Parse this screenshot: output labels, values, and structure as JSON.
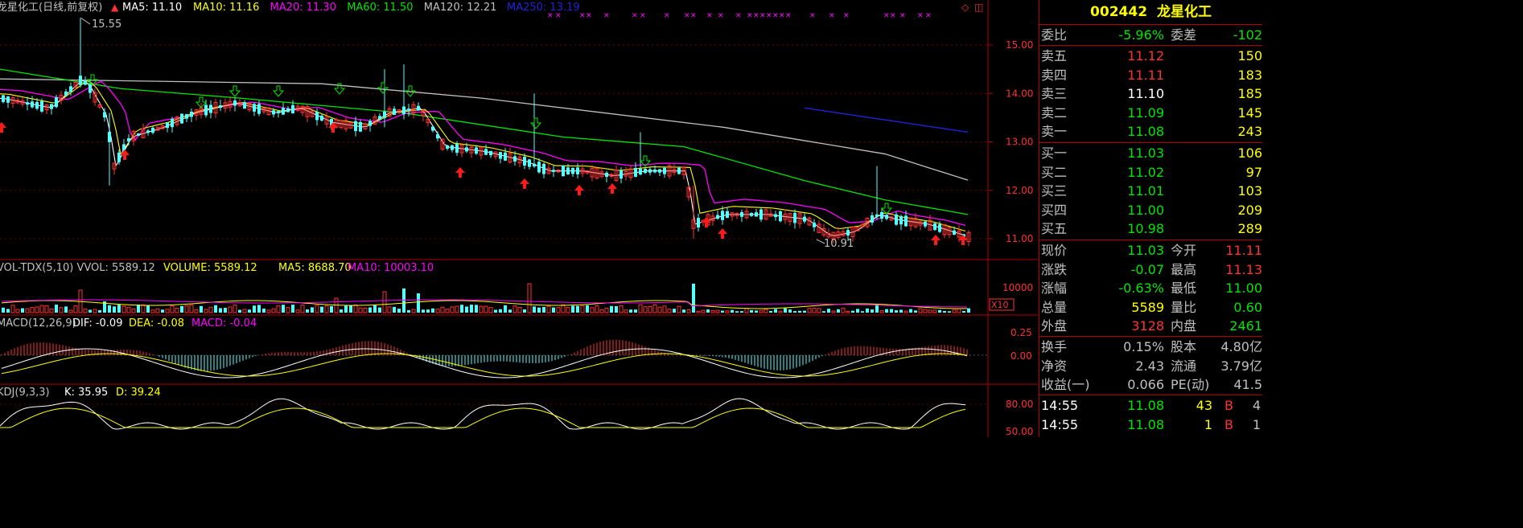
{
  "header": {
    "title": "龙星化工(日线,前复权)",
    "indicators": [
      {
        "label": "MA5: 11.10",
        "color": "#ffffff"
      },
      {
        "label": "MA10: 11.16",
        "color": "#ffff00"
      },
      {
        "label": "MA20: 11.30",
        "color": "#ff00ff"
      },
      {
        "label": "MA60: 11.50",
        "color": "#00e600"
      },
      {
        "label": "MA120: 12.21",
        "color": "#c0c0c0"
      },
      {
        "label": "MA250: 13.19",
        "color": "#2222dd"
      }
    ]
  },
  "main_chart": {
    "high_marker": "15.55",
    "low_marker": "10.91",
    "price_axis": [
      "15.00",
      "14.00",
      "13.00",
      "12.00",
      "11.00"
    ]
  },
  "volume_panel": {
    "title": "VOL-TDX(5,10) VVOL: 5589.12",
    "volume_label": "VOLUME: 5589.12",
    "ma5_label": "MA5: 8688.70",
    "ma10_label": "MA10: 10003.10",
    "axis_label": "10000",
    "unit_label": "X10"
  },
  "macd_panel": {
    "title": "MACD(12,26,9)",
    "dif_label": "DIF: -0.09",
    "dea_label": "DEA: -0.08",
    "macd_label": "MACD: -0.04",
    "axis": [
      "0.25",
      "0.00"
    ]
  },
  "kdj_panel": {
    "title": "KDJ(9,3,3)",
    "k_label": "K: 35.95",
    "d_label": "D: 39.24",
    "axis": [
      "80.00",
      "50.00"
    ]
  },
  "quote": {
    "code": "002442",
    "name": "龙星化工",
    "weibi": {
      "label": "委比",
      "value": "-5.96%",
      "label2": "委差",
      "value2": "-102"
    },
    "asks": [
      {
        "label": "卖五",
        "price": "11.12",
        "volume": "150",
        "color": "#ff3232"
      },
      {
        "label": "卖四",
        "price": "11.11",
        "volume": "183",
        "color": "#ff3232"
      },
      {
        "label": "卖三",
        "price": "11.10",
        "volume": "185",
        "color": "#ffffff"
      },
      {
        "label": "卖二",
        "price": "11.09",
        "volume": "145",
        "color": "#00e600"
      },
      {
        "label": "卖一",
        "price": "11.08",
        "volume": "243",
        "color": "#00e600"
      }
    ],
    "bids": [
      {
        "label": "买一",
        "price": "11.03",
        "volume": "106",
        "color": "#00e600"
      },
      {
        "label": "买二",
        "price": "11.02",
        "volume": "97",
        "color": "#00e600"
      },
      {
        "label": "买三",
        "price": "11.01",
        "volume": "103",
        "color": "#00e600"
      },
      {
        "label": "买四",
        "price": "11.00",
        "volume": "209",
        "color": "#00e600"
      },
      {
        "label": "买五",
        "price": "10.98",
        "volume": "289",
        "color": "#00e600"
      }
    ],
    "stats1": [
      {
        "l1": "现价",
        "v1": "11.03",
        "c1": "#00e600",
        "l2": "今开",
        "v2": "11.11",
        "c2": "#ff3232"
      },
      {
        "l1": "涨跌",
        "v1": "-0.07",
        "c1": "#00e600",
        "l2": "最高",
        "v2": "11.13",
        "c2": "#ff3232"
      },
      {
        "l1": "涨幅",
        "v1": "-0.63%",
        "c1": "#00e600",
        "l2": "最低",
        "v2": "11.00",
        "c2": "#00e600"
      },
      {
        "l1": "总量",
        "v1": "5589",
        "c1": "#ffff00",
        "l2": "量比",
        "v2": "0.60",
        "c2": "#00e600"
      },
      {
        "l1": "外盘",
        "v1": "3128",
        "c1": "#ff3232",
        "l2": "内盘",
        "v2": "2461",
        "c2": "#00e600"
      }
    ],
    "stats2": [
      {
        "l1": "换手",
        "v1": "0.15%",
        "c1": "#c0c0c0",
        "l2": "股本",
        "v2": "4.80亿",
        "c2": "#c0c0c0"
      },
      {
        "l1": "净资",
        "v1": "2.43",
        "c1": "#c0c0c0",
        "l2": "流通",
        "v2": "3.79亿",
        "c2": "#c0c0c0"
      },
      {
        "l1": "收益(一)",
        "v1": "0.066",
        "c1": "#c0c0c0",
        "l2": "PE(动)",
        "v2": "41.5",
        "c2": "#c0c0c0"
      }
    ],
    "ticks": [
      {
        "time": "14:55",
        "price": "11.08",
        "vol": "43",
        "side": "B",
        "num": "4"
      },
      {
        "time": "14:55",
        "price": "11.08",
        "vol": "1",
        "side": "B",
        "num": "1"
      }
    ]
  },
  "chart_data": {
    "type": "candlestick",
    "title": "龙星化工(日线,前复权)",
    "ylim": [
      10.8,
      15.6
    ],
    "annotations": [
      "15.55",
      "10.91"
    ],
    "series": [
      {
        "name": "MA5",
        "color": "#ffffff",
        "last": 11.1
      },
      {
        "name": "MA10",
        "color": "#ffff00",
        "last": 11.16
      },
      {
        "name": "MA20",
        "color": "#ff00ff",
        "last": 11.3
      },
      {
        "name": "MA60",
        "color": "#00e600",
        "last": 11.5
      },
      {
        "name": "MA120",
        "color": "#c0c0c0",
        "last": 12.21
      },
      {
        "name": "MA250",
        "color": "#2222dd",
        "last": 13.19
      }
    ],
    "ma250_points": [
      [
        1000,
        13.7
      ],
      [
        1203,
        13.2
      ]
    ],
    "ma120_points": [
      [
        0,
        14.3
      ],
      [
        400,
        14.2
      ],
      [
        600,
        13.9
      ],
      [
        900,
        13.3
      ],
      [
        1100,
        12.75
      ],
      [
        1203,
        12.21
      ]
    ],
    "ma60_points": [
      [
        0,
        14.5
      ],
      [
        150,
        14.1
      ],
      [
        300,
        13.9
      ],
      [
        500,
        13.6
      ],
      [
        700,
        13.1
      ],
      [
        850,
        12.9
      ],
      [
        1000,
        12.2
      ],
      [
        1100,
        11.8
      ],
      [
        1203,
        11.5
      ]
    ],
    "price_path": [
      [
        0,
        13.9
      ],
      [
        60,
        13.7
      ],
      [
        100,
        14.3
      ],
      [
        110,
        14.1
      ],
      [
        130,
        13.5
      ],
      [
        140,
        12.5
      ],
      [
        160,
        13.1
      ],
      [
        200,
        13.3
      ],
      [
        240,
        13.6
      ],
      [
        290,
        13.8
      ],
      [
        340,
        13.6
      ],
      [
        370,
        13.7
      ],
      [
        410,
        13.4
      ],
      [
        450,
        13.3
      ],
      [
        480,
        13.6
      ],
      [
        520,
        13.7
      ],
      [
        550,
        12.9
      ],
      [
        600,
        12.8
      ],
      [
        650,
        12.6
      ],
      [
        680,
        12.4
      ],
      [
        720,
        12.4
      ],
      [
        760,
        12.3
      ],
      [
        800,
        12.4
      ],
      [
        850,
        12.4
      ],
      [
        860,
        11.3
      ],
      [
        900,
        11.5
      ],
      [
        950,
        11.5
      ],
      [
        1000,
        11.4
      ],
      [
        1030,
        11.05
      ],
      [
        1060,
        11.15
      ],
      [
        1090,
        11.5
      ],
      [
        1110,
        11.4
      ],
      [
        1150,
        11.3
      ],
      [
        1203,
        11.03
      ]
    ],
    "kdj": {
      "K": 35.95,
      "D": 39.24
    },
    "macd": {
      "DIF": -0.09,
      "DEA": -0.08,
      "MACD": -0.04
    }
  }
}
